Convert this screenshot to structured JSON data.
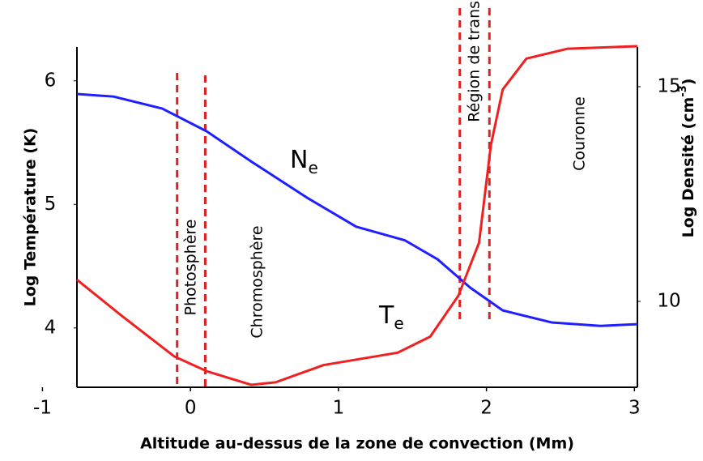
{
  "chart_data": {
    "type": "line",
    "xlabel": "Altitude au-dessus de la zone de convection (Mm)",
    "ylabel": "Log Température (K)",
    "y2label": [
      "Log Densité (cm",
      "-3",
      ")"
    ],
    "xlim": [
      -0.767,
      3.02
    ],
    "xticks": [
      -1,
      0,
      1,
      2,
      3
    ],
    "ylim": [
      3.52,
      6.3
    ],
    "yticks": [
      4,
      5,
      6
    ],
    "y2lim": [
      8,
      16
    ],
    "y2ticks": [
      10,
      15
    ],
    "boundaries": [
      -0.09,
      0.1,
      1.82,
      2.02
    ],
    "boundary_color": "#e02020",
    "annotations": [
      "Photosphère",
      "Chromosphère",
      "Région de transition",
      "Couronne"
    ],
    "series": [
      {
        "label_main": "N",
        "label_sub": "e",
        "color": "#1f1fff",
        "axis": "y2",
        "x": [
          -0.767,
          -0.52,
          -0.19,
          0.11,
          0.41,
          0.79,
          1.12,
          1.45,
          1.67,
          1.89,
          2.11,
          2.44,
          2.77,
          3.02
        ],
        "values": [
          14.83,
          14.77,
          14.49,
          13.96,
          13.26,
          12.41,
          11.74,
          11.42,
          10.98,
          10.32,
          9.79,
          9.51,
          9.43,
          9.47
        ]
      },
      {
        "label_main": "T",
        "label_sub": "e",
        "color": "#f02020",
        "axis": "y",
        "x": [
          -0.767,
          -0.466,
          -0.11,
          0.11,
          0.41,
          0.575,
          0.9,
          1.4,
          1.62,
          1.81,
          1.95,
          2.03,
          2.11,
          2.27,
          2.55,
          3.02
        ],
        "values": [
          4.39,
          4.1,
          3.77,
          3.65,
          3.54,
          3.56,
          3.7,
          3.8,
          3.93,
          4.26,
          4.69,
          5.48,
          5.93,
          6.18,
          6.26,
          6.28
        ]
      }
    ]
  }
}
